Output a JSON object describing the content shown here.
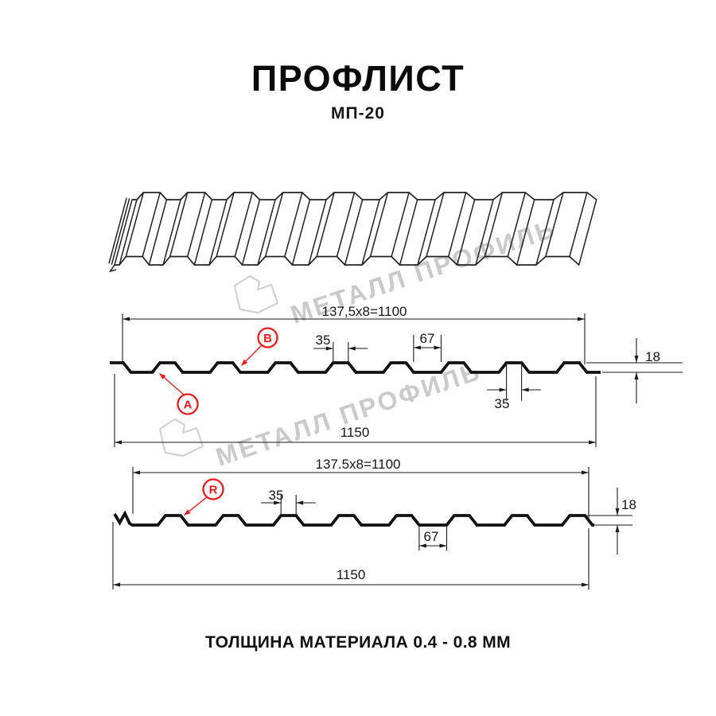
{
  "header": {
    "title": "ПРОФЛИСТ",
    "subtitle": "МП-20"
  },
  "watermark": {
    "brand": "МЕТАЛЛ ПРОФИЛЬ"
  },
  "diagram_top": {
    "pitch_dim": "137,5x8=1100",
    "rib_top_width": "35",
    "valley_width": "67",
    "height_dim": "18",
    "lower_rib_width": "35",
    "overall_width": "1150",
    "label_a": "A",
    "label_b": "B"
  },
  "diagram_bottom": {
    "pitch_dim": "137.5x8=1100",
    "rib_top_width": "35",
    "valley_width": "67",
    "height_dim": "18",
    "overall_width": "1150",
    "label_r": "R"
  },
  "footer": {
    "thickness_note": "ТОЛЩИНА МАТЕРИАЛА 0.4 - 0.8 ММ"
  },
  "colors": {
    "line": "#1a1a1a",
    "profile": "#111111",
    "sheet3d": "#222222",
    "accent_red": "#ed1c1c",
    "watermark_gray": "#cacaca",
    "background": "#ffffff"
  }
}
